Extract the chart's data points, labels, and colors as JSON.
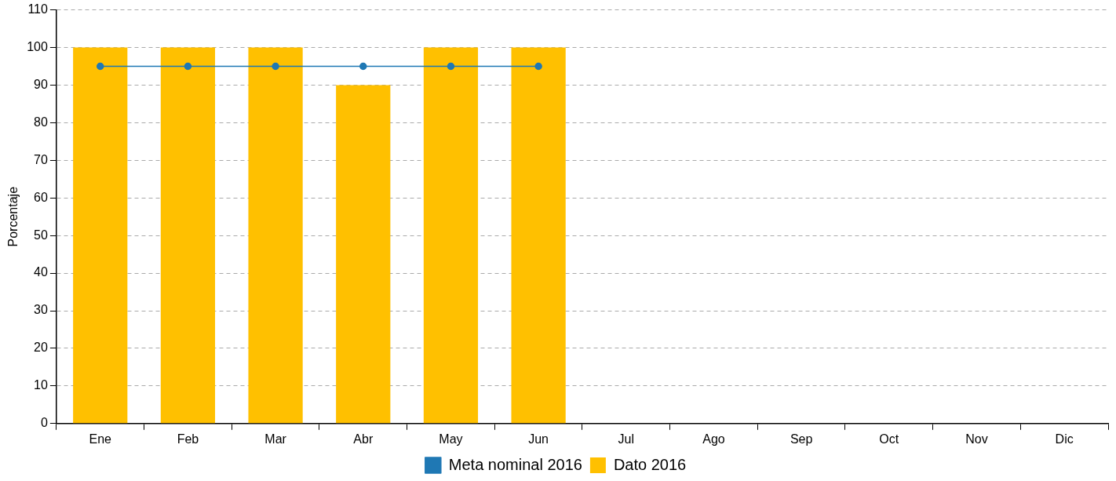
{
  "chart_data": {
    "type": "bar",
    "ylabel": "Porcentaje",
    "categories": [
      "Ene",
      "Feb",
      "Mar",
      "Abr",
      "May",
      "Jun",
      "Jul",
      "Ago",
      "Sep",
      "Oct",
      "Nov",
      "Dic"
    ],
    "series": [
      {
        "name": "Meta nominal 2016",
        "type": "line",
        "color": "#1f78b4",
        "values": [
          95,
          95,
          95,
          95,
          95,
          95,
          null,
          null,
          null,
          null,
          null,
          null
        ]
      },
      {
        "name": "Dato 2016",
        "color": "#ffc000",
        "values": [
          100,
          100,
          100,
          90,
          100,
          100,
          null,
          null,
          null,
          null,
          null,
          null
        ]
      }
    ],
    "ylim": [
      0,
      110
    ],
    "yticks": [
      0,
      10,
      20,
      30,
      40,
      50,
      60,
      70,
      80,
      90,
      100,
      110
    ],
    "grid": "y",
    "legend": "bottom",
    "marker": "circle",
    "line_style": "solid"
  }
}
